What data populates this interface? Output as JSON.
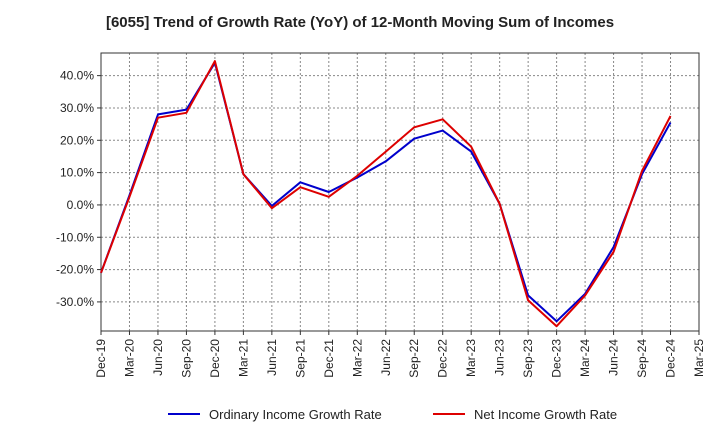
{
  "chart_data": {
    "type": "line",
    "title": "[6055]  Trend of Growth Rate (YoY) of 12-Month Moving Sum of Incomes",
    "xlabel": "",
    "ylabel": "",
    "x_tick_labels": [
      "Dec-19",
      "Mar-20",
      "Jun-20",
      "Sep-20",
      "Dec-20",
      "Mar-21",
      "Jun-21",
      "Sep-21",
      "Dec-21",
      "Mar-22",
      "Jun-22",
      "Sep-22",
      "Dec-22",
      "Mar-23",
      "Jun-23",
      "Sep-23",
      "Dec-23",
      "Mar-24",
      "Jun-24",
      "Sep-24",
      "Dec-24",
      "Mar-25"
    ],
    "y_tick_labels": [
      "40.0%",
      "30.0%",
      "20.0%",
      "10.0%",
      "0.0%",
      "-10.0%",
      "-20.0%",
      "-30.0%"
    ],
    "y_ticks": [
      40,
      30,
      20,
      10,
      0,
      -10,
      -20,
      -30
    ],
    "ylim": [
      -39,
      47
    ],
    "grid": true,
    "legend_position": "bottom",
    "series": [
      {
        "name": "Ordinary Income Growth Rate",
        "color": "#0000cc",
        "x": [
          "Dec-19",
          "Mar-20",
          "Jun-20",
          "Sep-20",
          "Dec-20",
          "Mar-21",
          "Jun-21",
          "Sep-21",
          "Dec-21",
          "Mar-22",
          "Jun-22",
          "Sep-22",
          "Dec-22",
          "Mar-23",
          "Jun-23",
          "Sep-23",
          "Dec-23",
          "Mar-24",
          "Jun-24",
          "Sep-24",
          "Dec-24"
        ],
        "values": [
          -21,
          3,
          28,
          29.5,
          44,
          9.5,
          -0.3,
          7,
          4,
          8.5,
          13.5,
          20.5,
          23,
          16.5,
          0.3,
          -28,
          -36,
          -27.5,
          -13,
          9.5,
          25.5
        ]
      },
      {
        "name": "Net Income Growth Rate",
        "color": "#dd0000",
        "x": [
          "Dec-19",
          "Mar-20",
          "Jun-20",
          "Sep-20",
          "Dec-20",
          "Mar-21",
          "Jun-21",
          "Sep-21",
          "Dec-21",
          "Mar-22",
          "Jun-22",
          "Sep-22",
          "Dec-22",
          "Mar-23",
          "Jun-23",
          "Sep-23",
          "Dec-23",
          "Mar-24",
          "Jun-24",
          "Sep-24",
          "Dec-24"
        ],
        "values": [
          -21,
          2.5,
          27,
          28.5,
          44.5,
          9.5,
          -1,
          5.5,
          2.5,
          9,
          16.5,
          24,
          26.5,
          18,
          0.3,
          -29.5,
          -37.5,
          -28,
          -14.5,
          10.5,
          27.5
        ]
      }
    ]
  }
}
